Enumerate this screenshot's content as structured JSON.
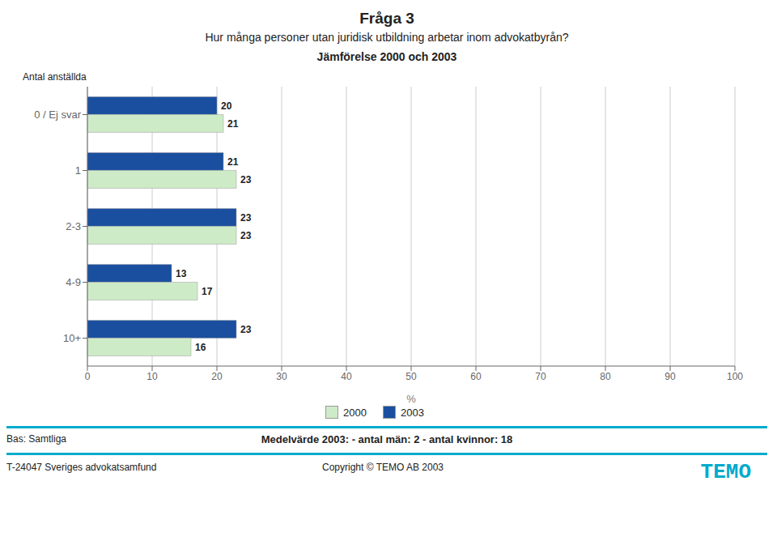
{
  "chart_data": {
    "type": "bar",
    "orientation": "horizontal",
    "title": "Fråga 3",
    "subtitle": [
      "Hur många personer utan juridisk utbildning arbetar inom advokatbyrån?",
      "Jämförelse  2000 och 2003"
    ],
    "ylabel": "Antal anställda",
    "xlabel": "%",
    "categories": [
      "0 / Ej svar",
      "1",
      "2-3",
      "4-9",
      "10+"
    ],
    "series": [
      {
        "name": "2003",
        "color": "#1A4F9F",
        "values": [
          20,
          21,
          23,
          13,
          23
        ]
      },
      {
        "name": "2000",
        "color": "#CEEBC8",
        "values": [
          21,
          23,
          23,
          17,
          16
        ]
      }
    ],
    "xlim": [
      0,
      100
    ],
    "xticks": [
      0,
      10,
      20,
      30,
      40,
      50,
      60,
      70,
      80,
      90,
      100
    ],
    "grid": true,
    "legend": "bottom",
    "data_labels": true,
    "annotations": [
      "Bas: Samtliga",
      "Medelvärde 2003:  -  antal män: 2    -  antal kvinnor: 18",
      "T-24047 Sveriges advokatsamfund",
      "Copyright © TEMO AB 2003",
      "TEMO"
    ]
  }
}
